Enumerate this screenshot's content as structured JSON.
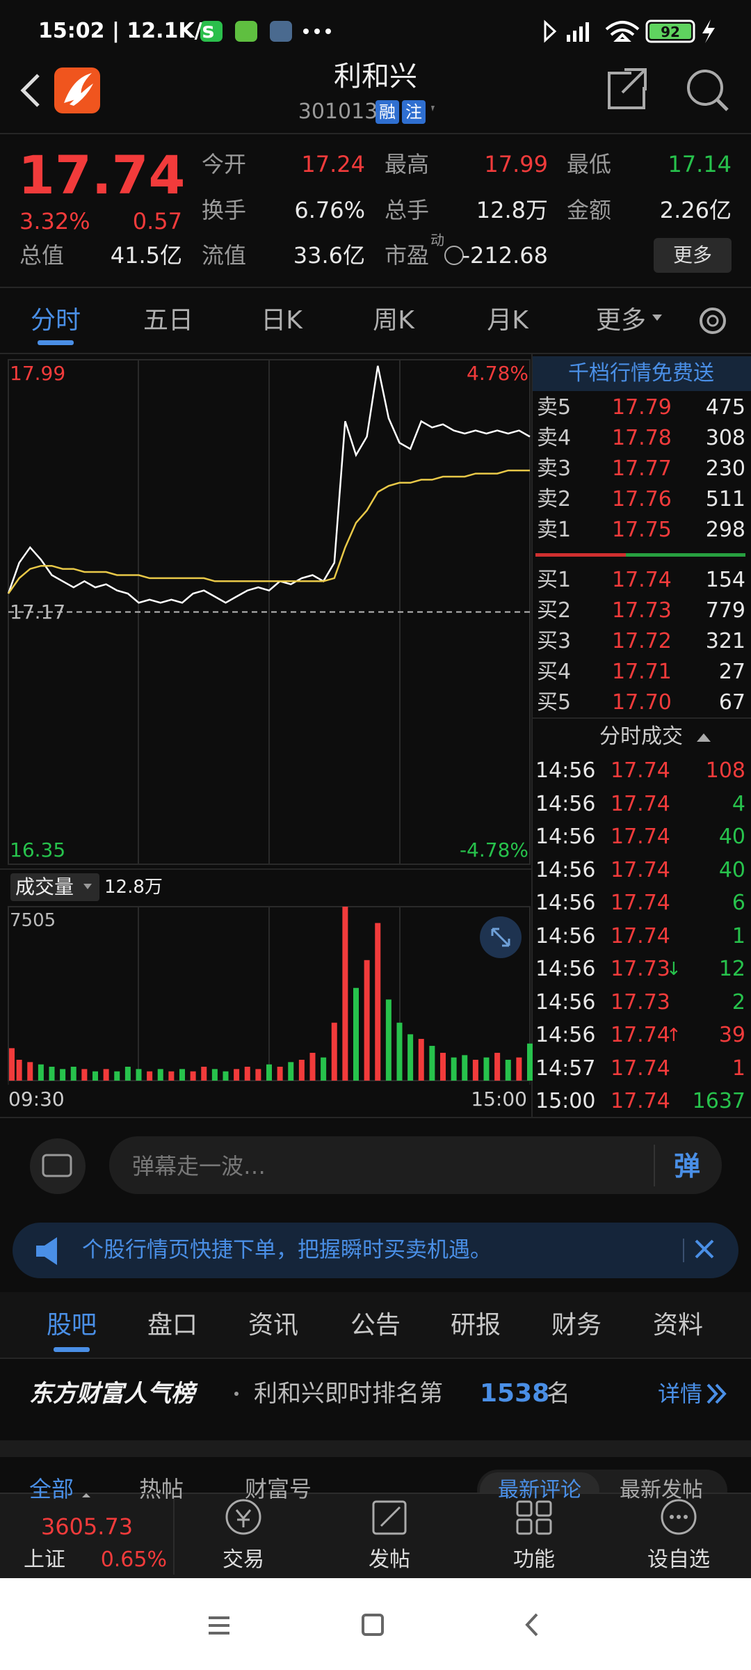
{
  "status_bar": {
    "time": "15:02 | 12.1K/s",
    "battery": "92"
  },
  "header": {
    "title": "利和兴",
    "code": "301013",
    "badges": [
      "融",
      "注"
    ]
  },
  "quote": {
    "price": "17.74",
    "change_pct": "3.32%",
    "change": "0.57",
    "color": "#f23b3b",
    "fields": [
      {
        "label": "今开",
        "value": "17.24",
        "color": "#f23b3b"
      },
      {
        "label": "最高",
        "value": "17.99",
        "color": "#f23b3b"
      },
      {
        "label": "最低",
        "value": "17.14",
        "color": "#27c24c"
      },
      {
        "label": "换手",
        "value": "6.76%"
      },
      {
        "label": "总手",
        "value": "12.8万"
      },
      {
        "label": "金额",
        "value": "2.26亿"
      },
      {
        "label": "总值",
        "value": "41.5亿"
      },
      {
        "label": "流值",
        "value": "33.6亿"
      },
      {
        "label": "市盈",
        "sup": "动",
        "value": "-212.68"
      }
    ],
    "more": "更多"
  },
  "chart_tabs": {
    "items": [
      "分时",
      "五日",
      "日K",
      "周K",
      "月K",
      "更多"
    ],
    "active": 0
  },
  "intraday_chart": {
    "type": "line",
    "xlim": [
      0,
      48
    ],
    "xticks": [
      {
        "value": 0,
        "label": "09:30"
      },
      {
        "value": 48,
        "label": "15:00"
      }
    ],
    "ylim": [
      16.35,
      17.99
    ],
    "yticks": [
      17.99,
      17.17,
      16.35
    ],
    "y2lim": [
      -4.78,
      4.78
    ],
    "y2ticks": [
      {
        "value": 4.78,
        "label": "4.78%"
      },
      {
        "value": -4.78,
        "label": "-4.78%"
      }
    ],
    "series": [
      {
        "color": "#ffffff",
        "values": [
          17.23,
          17.33,
          17.38,
          17.34,
          17.29,
          17.27,
          17.25,
          17.27,
          17.25,
          17.26,
          17.24,
          17.23,
          17.2,
          17.21,
          17.2,
          17.21,
          17.2,
          17.23,
          17.24,
          17.22,
          17.2,
          17.22,
          17.24,
          17.25,
          17.24,
          17.27,
          17.26,
          17.28,
          17.29,
          17.27,
          17.33,
          17.79,
          17.68,
          17.74,
          17.97,
          17.8,
          17.72,
          17.7,
          17.79,
          17.77,
          17.78,
          17.76,
          17.75,
          17.76,
          17.75,
          17.76,
          17.75,
          17.76,
          17.74
        ]
      },
      {
        "color": "#e8c848",
        "values": [
          17.23,
          17.28,
          17.31,
          17.32,
          17.32,
          17.31,
          17.31,
          17.3,
          17.3,
          17.3,
          17.29,
          17.29,
          17.29,
          17.28,
          17.28,
          17.28,
          17.28,
          17.28,
          17.28,
          17.27,
          17.27,
          17.27,
          17.27,
          17.27,
          17.27,
          17.27,
          17.27,
          17.27,
          17.27,
          17.27,
          17.28,
          17.38,
          17.46,
          17.5,
          17.56,
          17.58,
          17.59,
          17.59,
          17.6,
          17.6,
          17.61,
          17.61,
          17.61,
          17.62,
          17.62,
          17.62,
          17.63,
          17.63,
          17.63
        ]
      }
    ]
  },
  "volume_chart": {
    "type": "bar",
    "title": "成交量",
    "total": "12.8万",
    "ylim": [
      0,
      7505
    ],
    "yticks": [
      7505
    ],
    "up_color": "#f23b3b",
    "down_color": "#27c24c",
    "values": [
      1400,
      900,
      800,
      700,
      600,
      500,
      600,
      500,
      400,
      500,
      400,
      600,
      500,
      400,
      500,
      400,
      500,
      400,
      600,
      500,
      400,
      500,
      600,
      500,
      700,
      600,
      800,
      900,
      1200,
      1000,
      2500,
      7505,
      4000,
      5200,
      6800,
      3500,
      2500,
      2000,
      1800,
      1500,
      1200,
      1000,
      1100,
      900,
      1000,
      1200,
      900,
      1000,
      1600
    ]
  },
  "order_book": {
    "title": "千档行情免费送",
    "asks": [
      {
        "label": "卖5",
        "price": "17.79",
        "volume": "475"
      },
      {
        "label": "卖4",
        "price": "17.78",
        "volume": "308"
      },
      {
        "label": "卖3",
        "price": "17.77",
        "volume": "230"
      },
      {
        "label": "卖2",
        "price": "17.76",
        "volume": "511"
      },
      {
        "label": "卖1",
        "price": "17.75",
        "volume": "298"
      }
    ],
    "bids": [
      {
        "label": "买1",
        "price": "17.74",
        "volume": "154"
      },
      {
        "label": "买2",
        "price": "17.73",
        "volume": "779"
      },
      {
        "label": "买3",
        "price": "17.72",
        "volume": "321"
      },
      {
        "label": "买4",
        "price": "17.71",
        "volume": "27"
      },
      {
        "label": "买5",
        "price": "17.70",
        "volume": "67"
      }
    ]
  },
  "trades": {
    "title": "分时成交",
    "rows": [
      {
        "time": "14:56",
        "price": "17.74",
        "volume": "108",
        "color": "#f23b3b"
      },
      {
        "time": "14:56",
        "price": "17.74",
        "volume": "4",
        "color": "#27c24c"
      },
      {
        "time": "14:56",
        "price": "17.74",
        "volume": "40",
        "color": "#27c24c"
      },
      {
        "time": "14:56",
        "price": "17.74",
        "volume": "40",
        "color": "#27c24c"
      },
      {
        "time": "14:56",
        "price": "17.74",
        "volume": "6",
        "color": "#27c24c"
      },
      {
        "time": "14:56",
        "price": "17.74",
        "volume": "1",
        "color": "#27c24c"
      },
      {
        "time": "14:56",
        "price": "17.73",
        "arrow": "↓",
        "arrow_color": "#27c24c",
        "volume": "12",
        "color": "#27c24c"
      },
      {
        "time": "14:56",
        "price": "17.73",
        "volume": "2",
        "color": "#27c24c"
      },
      {
        "time": "14:56",
        "price": "17.74",
        "arrow": "↑",
        "arrow_color": "#f23b3b",
        "volume": "39",
        "color": "#f23b3b"
      },
      {
        "time": "14:57",
        "price": "17.74",
        "volume": "1",
        "color": "#f23b3b"
      },
      {
        "time": "15:00",
        "price": "17.74",
        "volume": "1637",
        "color": "#27c24c"
      }
    ]
  },
  "danmu": {
    "placeholder": "弹幕走一波…",
    "button": "弹"
  },
  "notice": {
    "text": "个股行情页快捷下单，把握瞬时买卖机遇。"
  },
  "section_tabs": {
    "items": [
      "股吧",
      "盘口",
      "资讯",
      "公告",
      "研报",
      "财务",
      "资料"
    ],
    "active": 0
  },
  "ranking": {
    "brand": "东方财富人气榜",
    "text": "利和兴即时排名第",
    "rank": "1538",
    "suffix": "名",
    "link": "详情"
  },
  "post_tabs": {
    "items": [
      "全部",
      "热帖",
      "财富号"
    ],
    "sort": [
      "最新评论",
      "最新发帖"
    ]
  },
  "bottom_bar": {
    "index_value": "3605.73",
    "index_name": "上证",
    "index_change": "0.65%",
    "items": [
      "交易",
      "发帖",
      "功能",
      "设自选"
    ]
  }
}
